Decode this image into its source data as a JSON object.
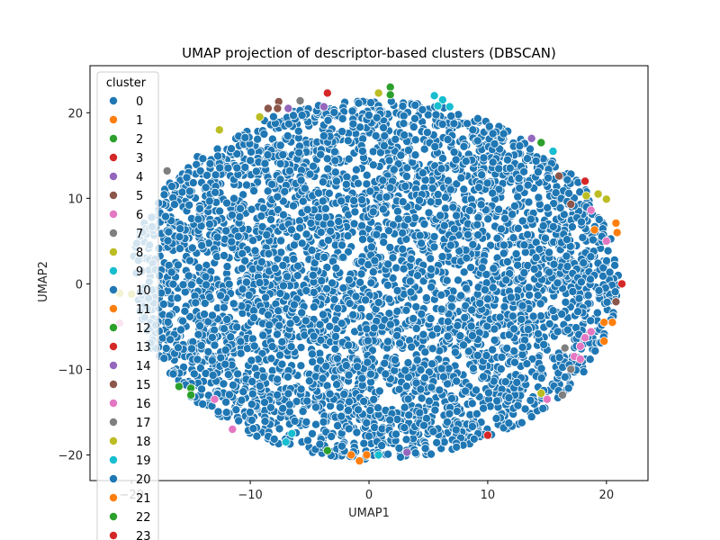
{
  "chart_data": {
    "type": "scatter",
    "title": "UMAP projection of descriptor-based clusters (DBSCAN)",
    "xlabel": "UMAP1",
    "ylabel": "UMAP2",
    "xlim": [
      -23.5,
      23.5
    ],
    "ylim": [
      -23,
      25.5
    ],
    "xticks": [
      -20,
      -10,
      0,
      10,
      20
    ],
    "yticks": [
      -20,
      -10,
      0,
      10,
      20
    ],
    "grid": false,
    "legend": {
      "title": "cluster",
      "placement": "upper-left"
    },
    "palette": [
      "#1f77b4",
      "#ff7f0e",
      "#2ca02c",
      "#d62728",
      "#9467bd",
      "#8c564b",
      "#e377c2",
      "#7f7f7f",
      "#bcbd22",
      "#17becf"
    ],
    "bulk": {
      "cluster": "0",
      "shape": "ellipse",
      "center": [
        0.5,
        0.5
      ],
      "radius_x": 20.5,
      "radius_y": 21.0,
      "approx_points": 4200
    },
    "series": [
      {
        "name": "0",
        "points": []
      },
      {
        "name": "1",
        "points": [
          [
            -1.5,
            -20
          ],
          [
            -0.2,
            -20
          ],
          [
            -0.8,
            -20.7
          ],
          [
            20.8,
            7.1
          ],
          [
            20.9,
            6.0
          ],
          [
            19,
            6.3
          ],
          [
            20.5,
            -4.5
          ],
          [
            19.8,
            -6.7
          ],
          [
            19.8,
            -4.5
          ]
        ]
      },
      {
        "name": "2",
        "points": [
          [
            1.8,
            23
          ],
          [
            1.8,
            22.1
          ],
          [
            -16,
            -12
          ],
          [
            -15,
            -12.2
          ],
          [
            -15,
            -13
          ],
          [
            -3.5,
            -19.5
          ],
          [
            14.5,
            16.5
          ]
        ]
      },
      {
        "name": "3",
        "points": [
          [
            -3.5,
            22.3
          ],
          [
            18.2,
            12
          ],
          [
            21.3,
            0
          ],
          [
            10,
            -17.7
          ]
        ]
      },
      {
        "name": "4",
        "points": [
          [
            -3.8,
            20.7
          ],
          [
            -6.8,
            20.5
          ],
          [
            3.2,
            -19.7
          ],
          [
            13.7,
            17
          ]
        ]
      },
      {
        "name": "5",
        "points": [
          [
            -8.5,
            20.5
          ],
          [
            -7.6,
            21.3
          ],
          [
            -7.7,
            20.5
          ],
          [
            17,
            9.3
          ],
          [
            16,
            12.6
          ],
          [
            20.8,
            -2.1
          ]
        ]
      },
      {
        "name": "6",
        "points": [
          [
            18.7,
            8.6
          ],
          [
            18.7,
            -5.6
          ],
          [
            17.3,
            -8.5
          ],
          [
            17.8,
            -7.3
          ],
          [
            -11.5,
            -17
          ],
          [
            -13,
            -13.5
          ],
          [
            15,
            -13.5
          ],
          [
            20,
            5
          ],
          [
            18.2,
            -6.3
          ],
          [
            17.8,
            -8.8
          ],
          [
            -21,
            -4.6
          ]
        ]
      },
      {
        "name": "7",
        "points": [
          [
            -5.8,
            21.4
          ],
          [
            -17,
            13.2
          ],
          [
            16.5,
            -7.5
          ],
          [
            16.3,
            -13
          ],
          [
            17,
            -10
          ]
        ]
      },
      {
        "name": "8",
        "points": [
          [
            -12.6,
            18
          ],
          [
            -9.2,
            19.5
          ],
          [
            0.8,
            22.3
          ],
          [
            18.3,
            10.3
          ],
          [
            19.3,
            10.5
          ],
          [
            20,
            9.9
          ],
          [
            14.5,
            -12.8
          ],
          [
            -21,
            -1.1
          ],
          [
            -20,
            -1.2
          ]
        ]
      },
      {
        "name": "9",
        "points": [
          [
            5.5,
            22
          ],
          [
            6.2,
            21.5
          ],
          [
            5.8,
            20.8
          ],
          [
            6.8,
            20.7
          ],
          [
            15.5,
            15.5
          ],
          [
            -7,
            -18.5
          ],
          [
            -6.5,
            -17.5
          ],
          [
            0.8,
            -20
          ]
        ]
      },
      {
        "name": "10",
        "points": []
      },
      {
        "name": "11",
        "points": []
      },
      {
        "name": "12",
        "points": []
      },
      {
        "name": "13",
        "points": []
      },
      {
        "name": "14",
        "points": []
      },
      {
        "name": "15",
        "points": []
      },
      {
        "name": "16",
        "points": []
      },
      {
        "name": "17",
        "points": []
      },
      {
        "name": "18",
        "points": []
      },
      {
        "name": "19",
        "points": []
      },
      {
        "name": "20",
        "points": []
      },
      {
        "name": "21",
        "points": []
      },
      {
        "name": "22",
        "points": []
      },
      {
        "name": "23",
        "points": []
      }
    ]
  }
}
